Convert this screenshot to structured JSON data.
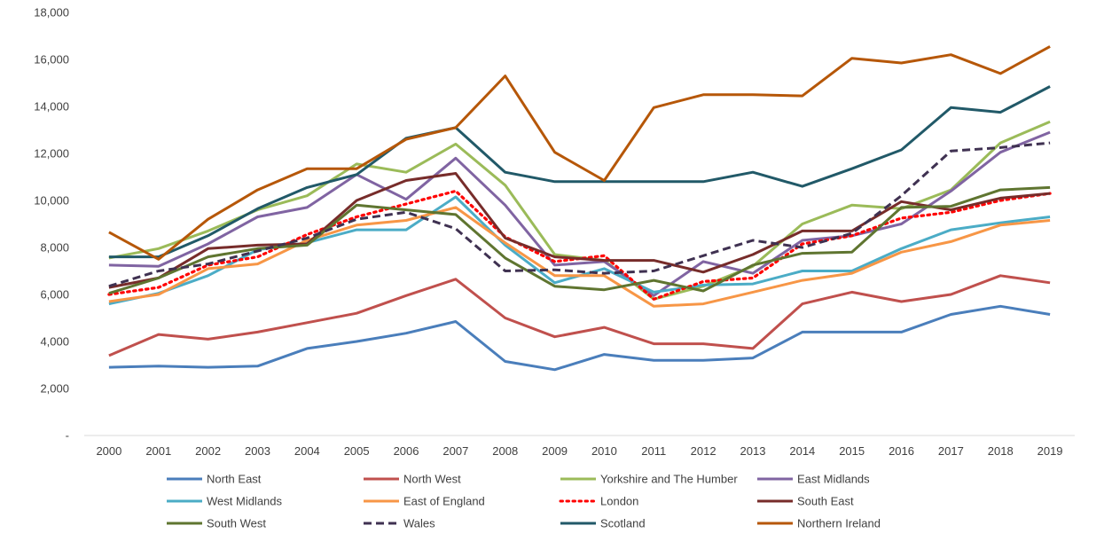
{
  "chart_data": {
    "type": "line",
    "title": "",
    "xlabel": "",
    "ylabel": "",
    "ylim": [
      0,
      18000
    ],
    "y_ticks": [
      {
        "value": 0,
        "label": "-"
      },
      {
        "value": 2000,
        "label": "2,000"
      },
      {
        "value": 4000,
        "label": "4,000"
      },
      {
        "value": 6000,
        "label": "6,000"
      },
      {
        "value": 8000,
        "label": "8,000"
      },
      {
        "value": 10000,
        "label": "10,000"
      },
      {
        "value": 12000,
        "label": "12,000"
      },
      {
        "value": 14000,
        "label": "14,000"
      },
      {
        "value": 16000,
        "label": "16,000"
      },
      {
        "value": 18000,
        "label": "18,000"
      }
    ],
    "categories": [
      "2000",
      "2001",
      "2002",
      "2003",
      "2004",
      "2005",
      "2006",
      "2007",
      "2008",
      "2009",
      "2010",
      "2011",
      "2012",
      "2013",
      "2014",
      "2015",
      "2016",
      "2017",
      "2018",
      "2019"
    ],
    "grid": false,
    "legend_position": "bottom",
    "series": [
      {
        "name": "North East",
        "color": "#4a7ebb",
        "dash": "solid",
        "values": [
          2900,
          2950,
          2900,
          2950,
          3700,
          4000,
          4350,
          4850,
          3150,
          2800,
          3450,
          3200,
          3200,
          3300,
          4400,
          4400,
          4400,
          5150,
          5500,
          5150
        ]
      },
      {
        "name": "North West",
        "color": "#c0504d",
        "dash": "solid",
        "values": [
          3400,
          4300,
          4100,
          4400,
          4800,
          5200,
          5950,
          6650,
          5000,
          4200,
          4600,
          3900,
          3900,
          3700,
          5600,
          6100,
          5700,
          6000,
          6800,
          6500
        ]
      },
      {
        "name": "Yorkshire and The Humber",
        "color": "#9bbb59",
        "dash": "solid",
        "values": [
          7550,
          7950,
          8700,
          9600,
          10200,
          11550,
          11200,
          12400,
          10650,
          7700,
          7450,
          5800,
          6350,
          7200,
          9000,
          9800,
          9650,
          10450,
          12450,
          13350
        ]
      },
      {
        "name": "East Midlands",
        "color": "#8064a2",
        "dash": "solid",
        "values": [
          7250,
          7200,
          8150,
          9300,
          9700,
          11100,
          10050,
          11800,
          9800,
          7250,
          7400,
          5950,
          7400,
          6900,
          8300,
          8500,
          9000,
          10400,
          12050,
          12900
        ]
      },
      {
        "name": "West Midlands",
        "color": "#4bacc6",
        "dash": "solid",
        "values": [
          5600,
          6050,
          6800,
          7900,
          8200,
          8750,
          8750,
          10150,
          8100,
          6500,
          7100,
          6100,
          6400,
          6450,
          7000,
          7000,
          7950,
          8750,
          9050,
          9300
        ]
      },
      {
        "name": "East of England",
        "color": "#f79646",
        "dash": "solid",
        "values": [
          5700,
          6000,
          7100,
          7300,
          8300,
          8950,
          9150,
          9700,
          8200,
          6800,
          6800,
          5500,
          5600,
          6100,
          6600,
          6900,
          7800,
          8250,
          8950,
          9150
        ]
      },
      {
        "name": "London",
        "color": "#ff0000",
        "dash": "dotted",
        "values": [
          6000,
          6300,
          7250,
          7600,
          8550,
          9300,
          9850,
          10400,
          8450,
          7400,
          7650,
          5800,
          6550,
          6700,
          8150,
          8500,
          9250,
          9500,
          10000,
          10300
        ]
      },
      {
        "name": "South East",
        "color": "#772c2a",
        "dash": "solid",
        "values": [
          6300,
          6700,
          7950,
          8100,
          8150,
          10000,
          10850,
          11150,
          8400,
          7600,
          7450,
          7450,
          6950,
          7700,
          8700,
          8700,
          9950,
          9600,
          10100,
          10300
        ]
      },
      {
        "name": "South West",
        "color": "#5f7530",
        "dash": "solid",
        "values": [
          6050,
          6700,
          7600,
          7950,
          8100,
          9800,
          9600,
          9400,
          7550,
          6350,
          6200,
          6600,
          6150,
          7250,
          7750,
          7800,
          9700,
          9750,
          10450,
          10550
        ]
      },
      {
        "name": "Wales",
        "color": "#3f3151",
        "dash": "dashed",
        "values": [
          6350,
          7000,
          7300,
          7850,
          8400,
          9200,
          9500,
          8800,
          7000,
          7050,
          6900,
          7000,
          7650,
          8300,
          8000,
          8600,
          10200,
          12100,
          12250,
          12450
        ]
      },
      {
        "name": "Scotland",
        "color": "#215968",
        "dash": "solid",
        "values": [
          7600,
          7600,
          8500,
          9650,
          10550,
          11100,
          12650,
          13100,
          11200,
          10800,
          10800,
          10800,
          10800,
          11200,
          10600,
          11350,
          12150,
          13950,
          13750,
          14850
        ]
      },
      {
        "name": "Northern Ireland",
        "color": "#b65708",
        "dash": "solid",
        "values": [
          8650,
          7500,
          9200,
          10450,
          11350,
          11350,
          12600,
          13100,
          15300,
          12050,
          10850,
          13950,
          14500,
          14500,
          14450,
          16050,
          15850,
          16200,
          15400,
          16550
        ]
      }
    ]
  }
}
